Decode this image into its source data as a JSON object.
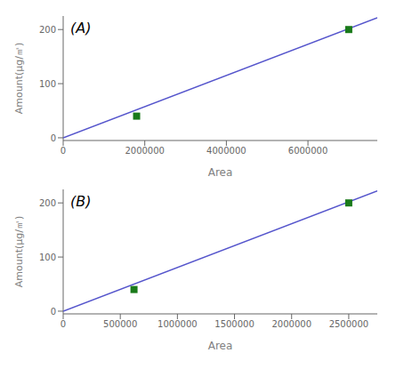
{
  "chart_data": [
    {
      "type": "scatter",
      "annotations": [
        "(A)"
      ],
      "x_label": "Area",
      "y_label": "Amount(μg/㎡)",
      "xlim": [
        0,
        7700000
      ],
      "ylim": [
        -5,
        225
      ],
      "xticks": [
        0,
        2000000,
        4000000,
        6000000
      ],
      "yticks": [
        0,
        100,
        200
      ],
      "grid": false,
      "series": [
        {
          "type": "line",
          "color": "#5555cc",
          "x": [
            0,
            7700000
          ],
          "values": [
            0,
            221.76
          ]
        },
        {
          "type": "scatter",
          "color": "#1a7a1a",
          "marker": "square",
          "x": [
            1800000,
            7000000
          ],
          "values": [
            40,
            200
          ]
        }
      ]
    },
    {
      "type": "scatter",
      "annotations": [
        "(B)"
      ],
      "x_label": "Area",
      "y_label": "Amount(μg/㎡)",
      "xlim": [
        0,
        2750000
      ],
      "ylim": [
        -5,
        225
      ],
      "xticks": [
        0,
        500000,
        1000000,
        1500000,
        2000000,
        2500000
      ],
      "yticks": [
        0,
        100,
        200
      ],
      "grid": false,
      "series": [
        {
          "type": "line",
          "color": "#5555cc",
          "x": [
            0,
            2750000
          ],
          "values": [
            0,
            222.2
          ]
        },
        {
          "type": "scatter",
          "color": "#1a7a1a",
          "marker": "square",
          "x": [
            620000,
            2500000
          ],
          "values": [
            40,
            200
          ]
        }
      ]
    }
  ]
}
